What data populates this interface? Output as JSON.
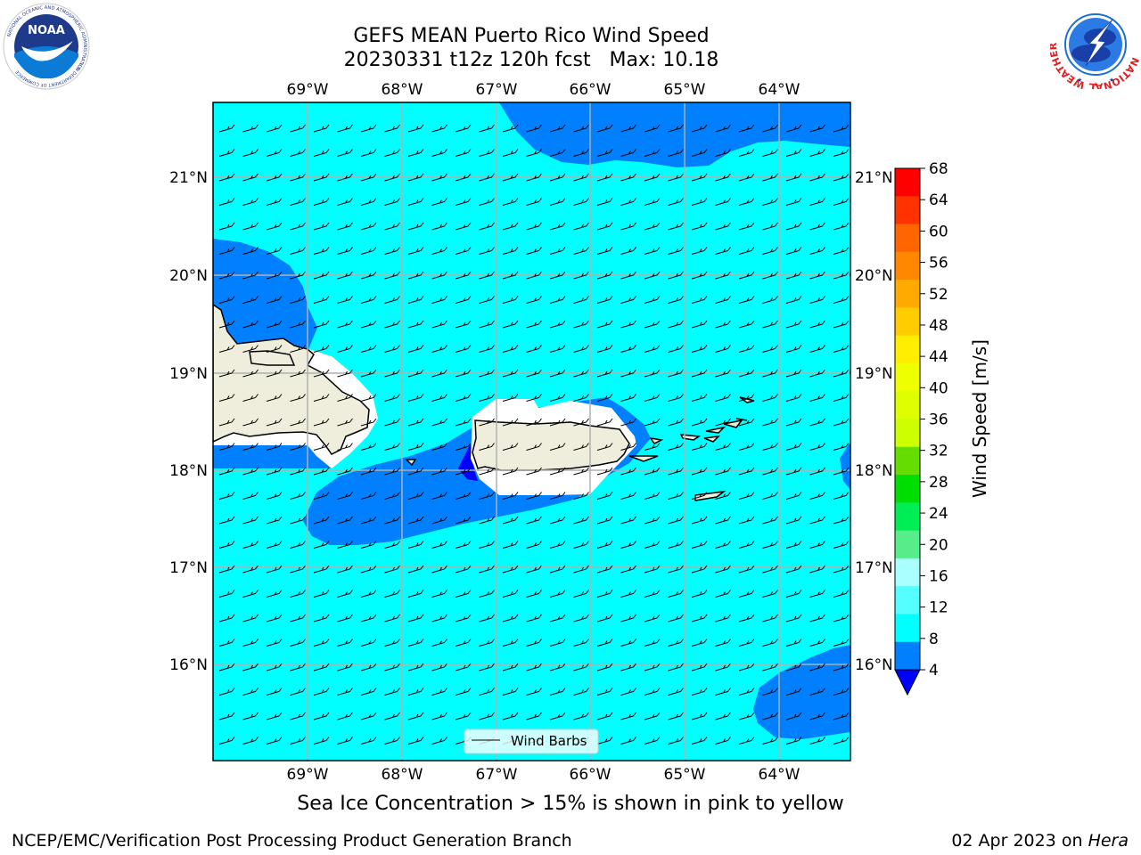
{
  "header": {
    "title_line1": "GEFS MEAN Puerto Rico Wind Speed",
    "title_line2": "20230331 t12z 120h fcst   Max: 10.18"
  },
  "logos": {
    "noaa_text": "NOAA",
    "noaa_ring_text": "NATIONAL OCEANIC AND ATMOSPHERIC ADMINISTRATION",
    "noaa_ring_bottom": "U.S. DEPARTMENT OF COMMERCE",
    "nws_ring_text": "NATIONAL WEATHER SERVICE"
  },
  "map": {
    "lon_ticks": [
      "69°W",
      "68°W",
      "67°W",
      "66°W",
      "65°W",
      "64°W"
    ],
    "lat_ticks": [
      "21°N",
      "20°N",
      "19°N",
      "18°N",
      "17°N",
      "16°N"
    ],
    "legend_label": "Wind Barbs",
    "colors": {
      "ocean_8_12": "#00ffff",
      "ocean_4_8": "#0080ff",
      "below_4": "#0000ff",
      "land": "#efeedc"
    }
  },
  "colorbar": {
    "label": "Wind Speed [m/s]",
    "ticks": [
      "68",
      "64",
      "60",
      "56",
      "52",
      "48",
      "44",
      "40",
      "36",
      "32",
      "28",
      "24",
      "20",
      "16",
      "12",
      "8",
      "4"
    ],
    "colors": [
      "#ff0000",
      "#ff3300",
      "#ff6600",
      "#ff8800",
      "#ffaa00",
      "#ffcc00",
      "#ffee00",
      "#eeff00",
      "#ddff00",
      "#ccff00",
      "#66dd00",
      "#00dd00",
      "#00ee55",
      "#55ee88",
      "#aaffff",
      "#55ffff",
      "#00ffff",
      "#0080ff"
    ],
    "extend_color": "#0000ff"
  },
  "subtitle": "Sea Ice Concentration > 15% is shown in pink to yellow",
  "footer": {
    "left": "NCEP/EMC/Verification Post Processing Product Generation Branch",
    "right_prefix": "02 Apr 2023 on ",
    "right_italic": "Hera"
  }
}
